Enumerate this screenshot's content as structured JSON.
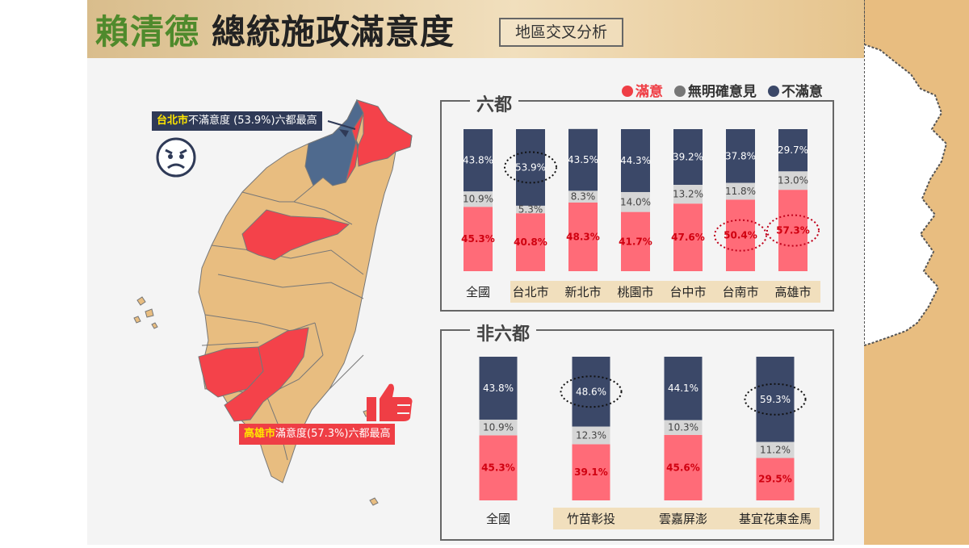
{
  "header": {
    "title_green": "賴清德",
    "title_black": "總統施政滿意度",
    "subtitle": "地區交叉分析"
  },
  "legend": [
    {
      "label": "滿意",
      "color": "#ef3e45"
    },
    {
      "label": "無明確意見",
      "color": "#777777"
    },
    {
      "label": "不滿意",
      "color": "#3b4868"
    }
  ],
  "map": {
    "callout_taipei_city": "台北市",
    "callout_taipei_text": "不滿意度 (53.9%)六都最高",
    "callout_kaohsiung_city": "高雄市",
    "callout_kaohsiung_text": "滿意度(57.3%)六都最高",
    "colors": {
      "land": "#e8bd80",
      "satisfied_high": "#f4424a",
      "unsatisfied_high": "#4f6a8e",
      "border": "#777"
    }
  },
  "colors": {
    "satisfied": "#ff6b78",
    "neutral": "#d6d6d6",
    "unsatisfied": "#3b4868"
  },
  "chart_data": [
    {
      "type": "bar",
      "title": "六都",
      "stacked": true,
      "categories": [
        "全國",
        "台北市",
        "新北市",
        "桃園市",
        "台中市",
        "台南市",
        "高雄市"
      ],
      "series": [
        {
          "name": "滿意",
          "values": [
            45.3,
            40.8,
            48.3,
            41.7,
            47.6,
            50.4,
            57.3
          ]
        },
        {
          "name": "無明確意見",
          "values": [
            10.9,
            5.3,
            8.3,
            14.0,
            13.2,
            11.8,
            13.0
          ]
        },
        {
          "name": "不滿意",
          "values": [
            43.8,
            53.9,
            43.5,
            44.3,
            39.2,
            37.8,
            29.7
          ]
        }
      ],
      "ylim": [
        0,
        100
      ],
      "highlights": [
        {
          "category": "台北市",
          "series": "不滿意"
        },
        {
          "category": "台南市",
          "series": "滿意"
        },
        {
          "category": "高雄市",
          "series": "滿意"
        }
      ]
    },
    {
      "type": "bar",
      "title": "非六都",
      "stacked": true,
      "categories": [
        "全國",
        "竹苗彰投",
        "雲嘉屏澎",
        "基宜花東金馬"
      ],
      "series": [
        {
          "name": "滿意",
          "values": [
            45.3,
            39.1,
            45.6,
            29.5
          ]
        },
        {
          "name": "無明確意見",
          "values": [
            10.9,
            12.3,
            10.3,
            11.2
          ]
        },
        {
          "name": "不滿意",
          "values": [
            43.8,
            48.6,
            44.1,
            59.3
          ]
        }
      ],
      "ylim": [
        0,
        100
      ],
      "highlights": [
        {
          "category": "竹苗彰投",
          "series": "不滿意"
        },
        {
          "category": "基宜花東金馬",
          "series": "不滿意"
        }
      ]
    }
  ]
}
